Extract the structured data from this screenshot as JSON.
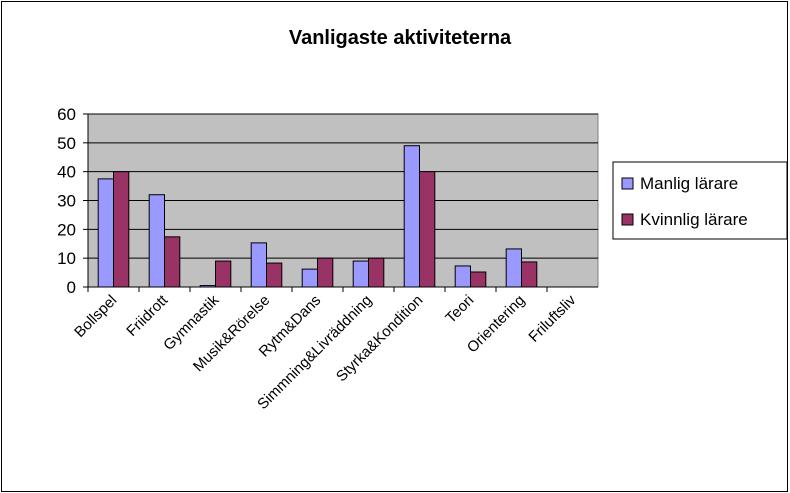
{
  "chart_data": {
    "type": "bar",
    "title": "Vanligaste aktiviteterna",
    "categories": [
      "Bollspel",
      "Friidrott",
      "Gymnastik",
      "Musik&Rörelse",
      "Rytm&Dans",
      "Simmning&Livräddning",
      "Styrka&Kondition",
      "Teori",
      "Orientering",
      "Friluftsliv"
    ],
    "series": [
      {
        "name": "Manlig lärare",
        "color": "#9999ff",
        "values": [
          37.5,
          32,
          0.5,
          15.3,
          6.2,
          9,
          49,
          7.3,
          13.2,
          0
        ]
      },
      {
        "name": "Kvinnlig lärare",
        "color": "#993366",
        "values": [
          40,
          17.4,
          9,
          8.3,
          10,
          10,
          40,
          5.2,
          8.7,
          0
        ]
      }
    ],
    "ylim": [
      0,
      60
    ],
    "yticks": [
      0,
      10,
      20,
      30,
      40,
      50,
      60
    ],
    "grid": true,
    "legend": "right"
  }
}
